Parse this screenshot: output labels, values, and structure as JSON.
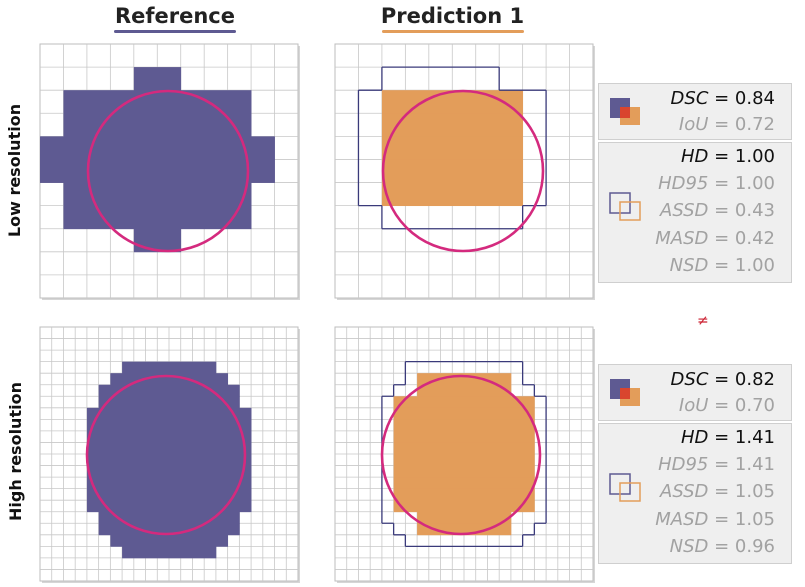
{
  "headers": {
    "reference": "Reference",
    "prediction": "Prediction 1"
  },
  "row_labels": {
    "low": "Low resolution",
    "high": "High resolution"
  },
  "low_metrics": {
    "overlap": [
      {
        "name": "DSC",
        "value": "0.84",
        "emphasis": true
      },
      {
        "name": "IoU",
        "value": "0.72",
        "emphasis": false
      }
    ],
    "boundary": [
      {
        "name": "HD",
        "value": "1.00",
        "emphasis": true
      },
      {
        "name": "HD95",
        "value": "1.00",
        "emphasis": false
      },
      {
        "name": "ASSD",
        "value": "0.43",
        "emphasis": false
      },
      {
        "name": "MASD",
        "value": "0.42",
        "emphasis": false
      },
      {
        "name": "NSD",
        "value": "1.00",
        "emphasis": false
      }
    ]
  },
  "high_metrics": {
    "overlap": [
      {
        "name": "DSC",
        "value": "0.82",
        "emphasis": true
      },
      {
        "name": "IoU",
        "value": "0.70",
        "emphasis": false
      }
    ],
    "boundary": [
      {
        "name": "HD",
        "value": "1.41",
        "emphasis": true
      },
      {
        "name": "HD95",
        "value": "1.41",
        "emphasis": false
      },
      {
        "name": "ASSD",
        "value": "1.05",
        "emphasis": false
      },
      {
        "name": "MASD",
        "value": "1.05",
        "emphasis": false
      },
      {
        "name": "NSD",
        "value": "0.96",
        "emphasis": false
      }
    ]
  },
  "not_equal_symbol": "≠",
  "colors": {
    "reference_fill": "#5e5a92",
    "prediction_fill": "#e39d5a",
    "circle": "#d42a7e",
    "grid": "#c8c8c8",
    "outline": "#3a3a7a",
    "overlap_red": "#d9452e",
    "emphasis_text": "#111111",
    "muted_text": "#a2a2a2",
    "neq": "#cc2233"
  },
  "icons": {
    "overlap": "overlap-squares-icon",
    "boundary": "boundary-outline-icon"
  }
}
